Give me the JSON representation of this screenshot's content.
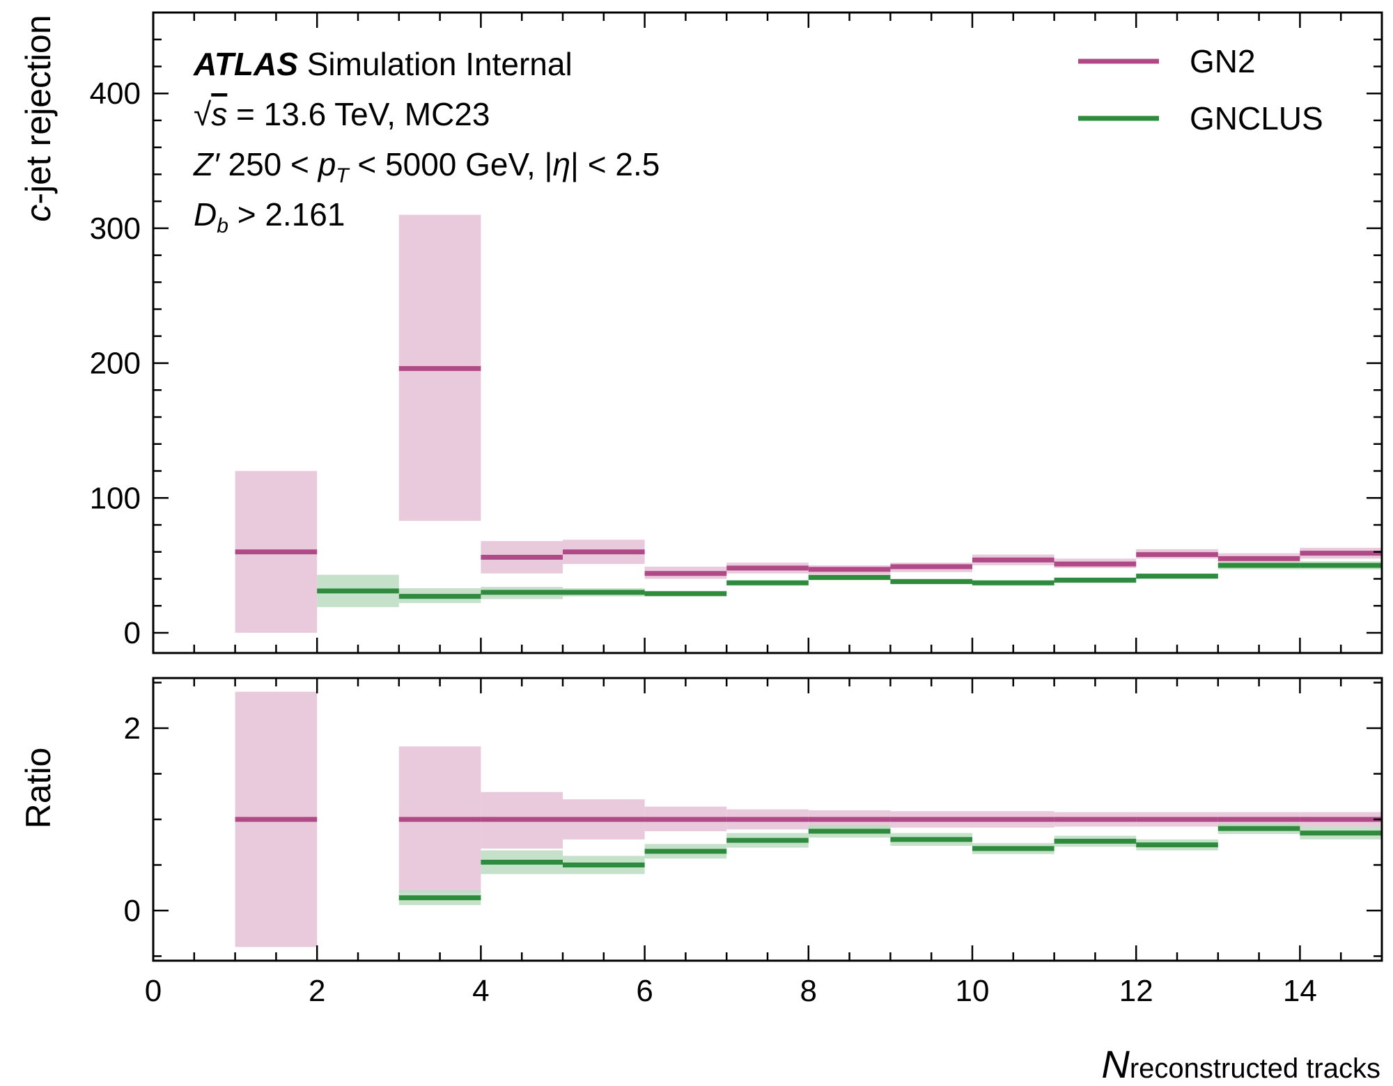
{
  "chart_data": {
    "type": "step",
    "x_edges": [
      1,
      2,
      3,
      4,
      5,
      6,
      7,
      8,
      9,
      10,
      11,
      12,
      13,
      14,
      15
    ],
    "xlim": [
      0,
      15
    ],
    "xlabel_main": "N",
    "xlabel_sub": "reconstructed tracks",
    "x_ticks": [
      "0",
      "2",
      "4",
      "6",
      "8",
      "10",
      "12",
      "14"
    ],
    "x_tick_values": [
      0,
      2,
      4,
      6,
      8,
      10,
      12,
      14
    ],
    "annotations": {
      "line1_bold": "ATLAS",
      "line1_rest": "Simulation Internal",
      "line2_sqrt": "√",
      "line2_s": "s",
      "line2_rest": " = 13.6 TeV, MC23",
      "line3_z": "Z′",
      "line3_mid1": " 250 < ",
      "line3_p": "p",
      "line3_T": "T",
      "line3_mid2": " < 5000 GeV, |",
      "line3_eta": "η",
      "line3_end": "| < 2.5",
      "line4_D": "D",
      "line4_b": "b",
      "line4_rest": " > 2.161"
    },
    "legend": {
      "placement": "top-right",
      "entries": [
        {
          "name": "GN2",
          "color": "#b04a86"
        },
        {
          "name": "GNCLUS",
          "color": "#2e8b3d"
        }
      ]
    },
    "top": {
      "ylabel_c": "c",
      "ylabel_rest": "-jet rejection",
      "ylim": [
        -15,
        460
      ],
      "y_ticks": [
        "0",
        "100",
        "200",
        "300",
        "400"
      ],
      "y_tick_values": [
        0,
        100,
        200,
        300,
        400
      ],
      "series": [
        {
          "name": "GN2",
          "color": "#b04a86",
          "band_color": "#e4c1d6",
          "bins": [
            {
              "x0": 1,
              "x1": 2,
              "y": 60,
              "lo": 0,
              "hi": 120
            },
            {
              "x0": 3,
              "x1": 4,
              "y": 196,
              "lo": 83,
              "hi": 310
            },
            {
              "x0": 4,
              "x1": 5,
              "y": 56,
              "lo": 44,
              "hi": 68
            },
            {
              "x0": 5,
              "x1": 6,
              "y": 60,
              "lo": 51,
              "hi": 69
            },
            {
              "x0": 6,
              "x1": 7,
              "y": 44,
              "lo": 40,
              "hi": 49
            },
            {
              "x0": 7,
              "x1": 8,
              "y": 48,
              "lo": 44,
              "hi": 52
            },
            {
              "x0": 8,
              "x1": 9,
              "y": 47,
              "lo": 43,
              "hi": 50
            },
            {
              "x0": 9,
              "x1": 10,
              "y": 49,
              "lo": 45,
              "hi": 52
            },
            {
              "x0": 10,
              "x1": 11,
              "y": 54,
              "lo": 50,
              "hi": 58
            },
            {
              "x0": 11,
              "x1": 12,
              "y": 51,
              "lo": 48,
              "hi": 55
            },
            {
              "x0": 12,
              "x1": 13,
              "y": 58,
              "lo": 55,
              "hi": 62
            },
            {
              "x0": 13,
              "x1": 14,
              "y": 55,
              "lo": 51,
              "hi": 59
            },
            {
              "x0": 14,
              "x1": 15,
              "y": 59,
              "lo": 55,
              "hi": 63
            }
          ]
        },
        {
          "name": "GNCLUS",
          "color": "#2e8b3d",
          "band_color": "#bcdcbf",
          "bins": [
            {
              "x0": 2,
              "x1": 3,
              "y": 31,
              "lo": 19,
              "hi": 43
            },
            {
              "x0": 3,
              "x1": 4,
              "y": 27,
              "lo": 22,
              "hi": 33
            },
            {
              "x0": 4,
              "x1": 5,
              "y": 30,
              "lo": 25,
              "hi": 34
            },
            {
              "x0": 5,
              "x1": 6,
              "y": 30,
              "lo": 27,
              "hi": 33
            },
            {
              "x0": 6,
              "x1": 7,
              "y": 29,
              "lo": 27,
              "hi": 31
            },
            {
              "x0": 7,
              "x1": 8,
              "y": 37,
              "lo": 35,
              "hi": 39
            },
            {
              "x0": 8,
              "x1": 9,
              "y": 41,
              "lo": 39,
              "hi": 43
            },
            {
              "x0": 9,
              "x1": 10,
              "y": 38,
              "lo": 36,
              "hi": 40
            },
            {
              "x0": 10,
              "x1": 11,
              "y": 37,
              "lo": 35,
              "hi": 39
            },
            {
              "x0": 11,
              "x1": 12,
              "y": 39,
              "lo": 37,
              "hi": 41
            },
            {
              "x0": 12,
              "x1": 13,
              "y": 42,
              "lo": 40,
              "hi": 44
            },
            {
              "x0": 13,
              "x1": 14,
              "y": 50,
              "lo": 47,
              "hi": 53
            },
            {
              "x0": 14,
              "x1": 15,
              "y": 50,
              "lo": 47,
              "hi": 53
            }
          ]
        }
      ]
    },
    "bottom": {
      "ylabel": "Ratio",
      "ylim": [
        -0.55,
        2.55
      ],
      "y_ticks": [
        "0",
        "2"
      ],
      "y_tick_values": [
        0,
        2
      ],
      "series": [
        {
          "name": "GN2",
          "color": "#b04a86",
          "band_color": "#e4c1d6",
          "bins": [
            {
              "x0": 1,
              "x1": 2,
              "y": 1.0,
              "lo": -0.4,
              "hi": 2.4
            },
            {
              "x0": 3,
              "x1": 4,
              "y": 1.0,
              "lo": 0.2,
              "hi": 1.8
            },
            {
              "x0": 4,
              "x1": 5,
              "y": 1.0,
              "lo": 0.68,
              "hi": 1.3
            },
            {
              "x0": 5,
              "x1": 6,
              "y": 1.0,
              "lo": 0.78,
              "hi": 1.22
            },
            {
              "x0": 6,
              "x1": 7,
              "y": 1.0,
              "lo": 0.87,
              "hi": 1.14
            },
            {
              "x0": 7,
              "x1": 8,
              "y": 1.0,
              "lo": 0.89,
              "hi": 1.11
            },
            {
              "x0": 8,
              "x1": 9,
              "y": 1.0,
              "lo": 0.9,
              "hi": 1.1
            },
            {
              "x0": 9,
              "x1": 10,
              "y": 1.0,
              "lo": 0.91,
              "hi": 1.09
            },
            {
              "x0": 10,
              "x1": 11,
              "y": 1.0,
              "lo": 0.91,
              "hi": 1.09
            },
            {
              "x0": 11,
              "x1": 12,
              "y": 1.0,
              "lo": 0.92,
              "hi": 1.08
            },
            {
              "x0": 12,
              "x1": 13,
              "y": 1.0,
              "lo": 0.92,
              "hi": 1.08
            },
            {
              "x0": 13,
              "x1": 14,
              "y": 1.0,
              "lo": 0.92,
              "hi": 1.08
            },
            {
              "x0": 14,
              "x1": 15,
              "y": 1.0,
              "lo": 0.92,
              "hi": 1.08
            }
          ]
        },
        {
          "name": "GNCLUS",
          "color": "#2e8b3d",
          "band_color": "#bcdcbf",
          "bins": [
            {
              "x0": 3,
              "x1": 4,
              "y": 0.14,
              "lo": 0.06,
              "hi": 0.22
            },
            {
              "x0": 4,
              "x1": 5,
              "y": 0.53,
              "lo": 0.4,
              "hi": 0.66
            },
            {
              "x0": 5,
              "x1": 6,
              "y": 0.5,
              "lo": 0.4,
              "hi": 0.6
            },
            {
              "x0": 6,
              "x1": 7,
              "y": 0.65,
              "lo": 0.57,
              "hi": 0.73
            },
            {
              "x0": 7,
              "x1": 8,
              "y": 0.77,
              "lo": 0.69,
              "hi": 0.85
            },
            {
              "x0": 8,
              "x1": 9,
              "y": 0.87,
              "lo": 0.8,
              "hi": 0.94
            },
            {
              "x0": 9,
              "x1": 10,
              "y": 0.78,
              "lo": 0.71,
              "hi": 0.85
            },
            {
              "x0": 10,
              "x1": 11,
              "y": 0.68,
              "lo": 0.62,
              "hi": 0.74
            },
            {
              "x0": 11,
              "x1": 12,
              "y": 0.76,
              "lo": 0.7,
              "hi": 0.82
            },
            {
              "x0": 12,
              "x1": 13,
              "y": 0.72,
              "lo": 0.66,
              "hi": 0.78
            },
            {
              "x0": 13,
              "x1": 14,
              "y": 0.9,
              "lo": 0.84,
              "hi": 0.96
            },
            {
              "x0": 14,
              "x1": 15,
              "y": 0.85,
              "lo": 0.78,
              "hi": 0.92
            }
          ]
        }
      ]
    }
  }
}
